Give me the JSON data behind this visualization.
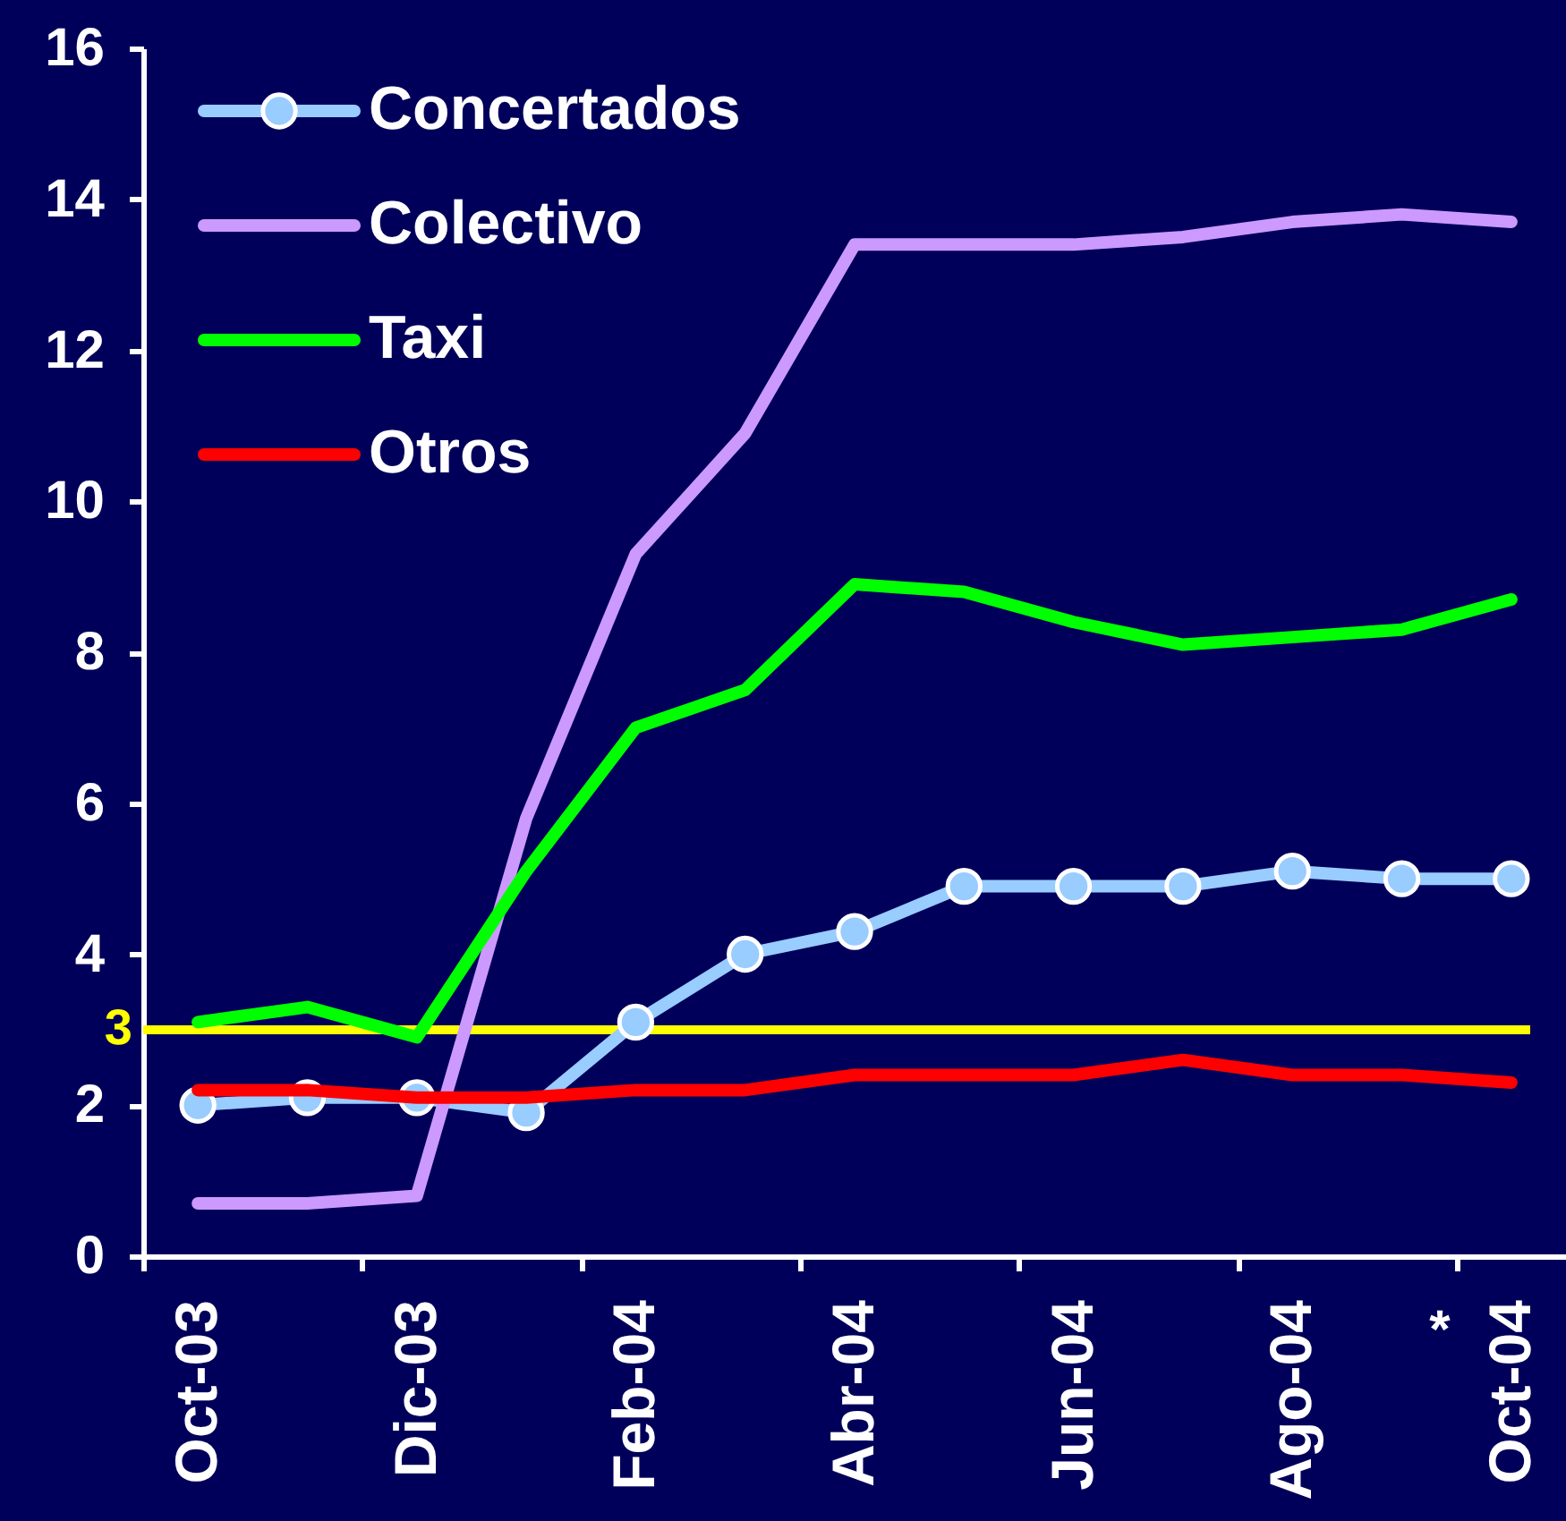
{
  "chart_data": {
    "type": "line",
    "categories": [
      "Oct-03",
      null,
      "Dic-03",
      null,
      "Feb-04",
      null,
      "Abr-04",
      null,
      "Jun-04",
      null,
      "Ago-04",
      null,
      "Oct-04"
    ],
    "series": [
      {
        "name": "Concertados",
        "color": "#99ccff",
        "marker": "circle",
        "values": [
          2.0,
          2.1,
          2.1,
          1.9,
          3.1,
          4.0,
          4.3,
          4.9,
          4.9,
          4.9,
          5.1,
          5.0,
          5.0
        ]
      },
      {
        "name": "Colectivo",
        "color": "#cc99ff",
        "values": [
          0.7,
          0.7,
          0.8,
          5.8,
          9.3,
          10.9,
          13.4,
          13.4,
          13.4,
          13.5,
          13.7,
          13.8,
          13.7
        ]
      },
      {
        "name": "Taxi",
        "color": "#00ff00",
        "values": [
          3.1,
          3.3,
          2.9,
          5.1,
          7.0,
          7.5,
          8.9,
          8.8,
          8.4,
          8.1,
          8.2,
          8.3,
          8.7
        ]
      },
      {
        "name": "Otros",
        "color": "#ff0000",
        "values": [
          2.2,
          2.2,
          2.1,
          2.1,
          2.2,
          2.2,
          2.4,
          2.4,
          2.4,
          2.6,
          2.4,
          2.4,
          2.3
        ]
      }
    ],
    "ylim": [
      0,
      16
    ],
    "yticks": [
      0,
      2,
      4,
      6,
      8,
      10,
      12,
      14,
      16
    ],
    "ref_lines": [
      {
        "axis": "y",
        "value": 3,
        "label": "3",
        "color": "#ffff00"
      }
    ],
    "annotations": [
      "*"
    ],
    "legend": "top left",
    "line_style": "solid"
  }
}
